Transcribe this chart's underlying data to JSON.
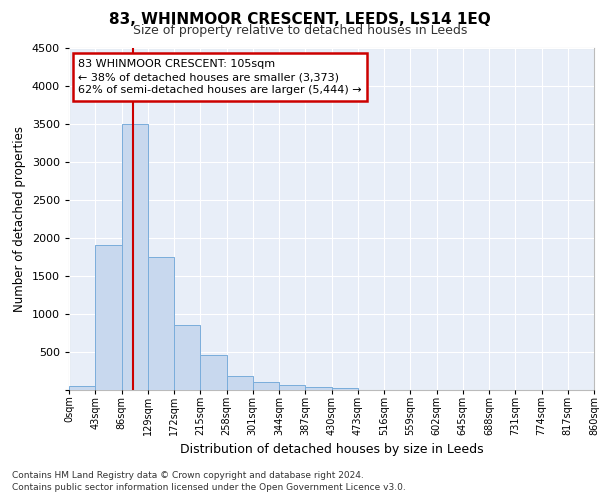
{
  "title": "83, WHINMOOR CRESCENT, LEEDS, LS14 1EQ",
  "subtitle": "Size of property relative to detached houses in Leeds",
  "xlabel": "Distribution of detached houses by size in Leeds",
  "ylabel": "Number of detached properties",
  "bin_edges": [
    0,
    43,
    86,
    129,
    172,
    215,
    258,
    301,
    344,
    387,
    430,
    473,
    516,
    559,
    602,
    645,
    688,
    731,
    774,
    817,
    860
  ],
  "bin_labels": [
    "0sqm",
    "43sqm",
    "86sqm",
    "129sqm",
    "172sqm",
    "215sqm",
    "258sqm",
    "301sqm",
    "344sqm",
    "387sqm",
    "430sqm",
    "473sqm",
    "516sqm",
    "559sqm",
    "602sqm",
    "645sqm",
    "688sqm",
    "731sqm",
    "774sqm",
    "817sqm",
    "860sqm"
  ],
  "counts": [
    50,
    1900,
    3500,
    1750,
    860,
    455,
    190,
    110,
    60,
    40,
    20,
    0,
    0,
    0,
    0,
    0,
    0,
    0,
    0,
    0
  ],
  "bar_color": "#c8d8ee",
  "bar_edge_color": "#7aaddb",
  "property_size": 105,
  "red_line_color": "#cc0000",
  "annotation_line1": "83 WHINMOOR CRESCENT: 105sqm",
  "annotation_line2": "← 38% of detached houses are smaller (3,373)",
  "annotation_line3": "62% of semi-detached houses are larger (5,444) →",
  "annotation_box_color": "#cc0000",
  "ylim": [
    0,
    4500
  ],
  "yticks": [
    0,
    500,
    1000,
    1500,
    2000,
    2500,
    3000,
    3500,
    4000,
    4500
  ],
  "background_color": "#ffffff",
  "plot_bg_color": "#e8eef8",
  "grid_color": "#ffffff",
  "footer_line1": "Contains HM Land Registry data © Crown copyright and database right 2024.",
  "footer_line2": "Contains public sector information licensed under the Open Government Licence v3.0."
}
